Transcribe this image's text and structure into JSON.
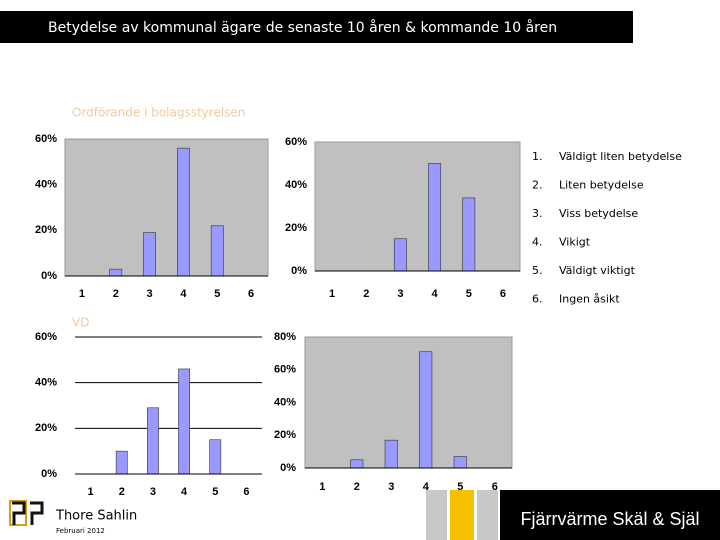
{
  "slide": {
    "title": "Betydelse av kommunal ägare de senaste 10 åren & kommande 10 åren",
    "sections": [
      "Ordförande i bolagsstyrelsen",
      "VD"
    ],
    "legend": [
      {
        "number": "1.",
        "text": "Väldigt liten betydelse"
      },
      {
        "number": "2.",
        "text": "Liten betydelse"
      },
      {
        "number": "3.",
        "text": "Viss betydelse"
      },
      {
        "number": "4.",
        "text": "Vikigt"
      },
      {
        "number": "5.",
        "text": "Väldigt viktigt"
      },
      {
        "number": "6.",
        "text": "Ingen åsikt"
      }
    ],
    "author": "Thore Sahlin",
    "date": "Februari 2012",
    "brand": "Fjärrvärme Skäl & Själ"
  },
  "chart_data": [
    {
      "type": "bar",
      "categories": [
        "1",
        "2",
        "3",
        "4",
        "5",
        "6"
      ],
      "values": [
        0,
        3,
        19,
        56,
        22,
        0
      ],
      "color": "#9999ff",
      "background": "#c0c0c0",
      "ylim": [
        0,
        60
      ],
      "yticks": [
        {
          "value": 0,
          "label": "0%"
        },
        {
          "value": 20,
          "label": "20%"
        },
        {
          "value": 40,
          "label": "40%"
        },
        {
          "value": 60,
          "label": "60%"
        }
      ],
      "grid": false
    },
    {
      "type": "bar",
      "categories": [
        "1",
        "2",
        "3",
        "4",
        "5",
        "6"
      ],
      "values": [
        0,
        0,
        15,
        50,
        34,
        0
      ],
      "color": "#9999ff",
      "background": "#c0c0c0",
      "ylim": [
        0,
        60
      ],
      "yticks": [
        {
          "value": 0,
          "label": "0%"
        },
        {
          "value": 20,
          "label": "20%"
        },
        {
          "value": 40,
          "label": "40%"
        },
        {
          "value": 60,
          "label": "60%"
        }
      ],
      "grid": false
    },
    {
      "type": "bar",
      "categories": [
        "1",
        "2",
        "3",
        "4",
        "5",
        "6"
      ],
      "values": [
        0,
        10,
        29,
        46,
        15,
        0
      ],
      "color": "#9999ff",
      "background": "#ffffff",
      "ylim": [
        0,
        60
      ],
      "yticks": [
        {
          "value": 0,
          "label": "0%"
        },
        {
          "value": 20,
          "label": "20%"
        },
        {
          "value": 40,
          "label": "40%"
        },
        {
          "value": 60,
          "label": "60%"
        }
      ],
      "grid": true
    },
    {
      "type": "bar",
      "categories": [
        "1",
        "2",
        "3",
        "4",
        "5",
        "6"
      ],
      "values": [
        0,
        5,
        17,
        71,
        7,
        0
      ],
      "color": "#9999ff",
      "background": "#c0c0c0",
      "ylim": [
        0,
        80
      ],
      "yticks": [
        {
          "value": 0,
          "label": "0%"
        },
        {
          "value": 20,
          "label": "20%"
        },
        {
          "value": 40,
          "label": "40%"
        },
        {
          "value": 60,
          "label": "60%"
        },
        {
          "value": 80,
          "label": "80%"
        }
      ],
      "grid": false
    }
  ]
}
